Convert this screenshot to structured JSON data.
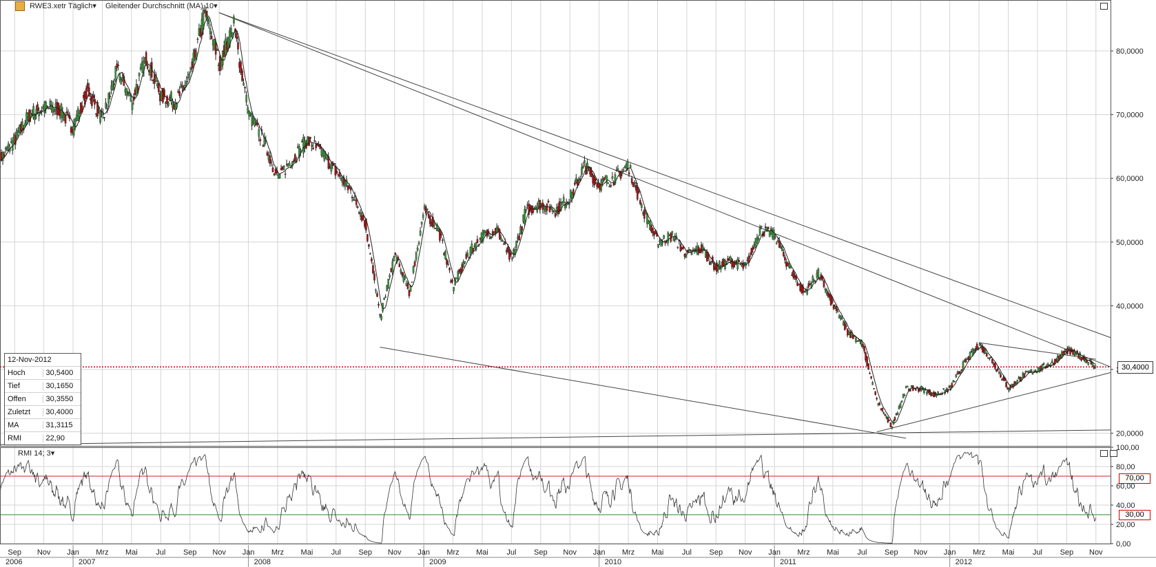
{
  "header": {
    "symbol_label": "RWE3.xetr Täglich",
    "indicator_label": "Gleitender Durchschnitt (MA) 10"
  },
  "rmi_header": {
    "label": "RMI 14; 3"
  },
  "info_box": {
    "date": "12-Nov-2012",
    "rows": [
      {
        "label": "Hoch",
        "value": "30,5400"
      },
      {
        "label": "Tief",
        "value": "30,1650"
      },
      {
        "label": "Offen",
        "value": "30,3550"
      },
      {
        "label": "Zuletzt",
        "value": "30,4000"
      },
      {
        "label": "MA",
        "value": "31,3115"
      },
      {
        "label": "RMI",
        "value": "22,90"
      }
    ]
  },
  "current_price_label": "30,4000",
  "rmi_levels": {
    "upper": "70,00",
    "lower": "30,00"
  },
  "colors": {
    "candle_up": "#3a9a3a",
    "candle_down": "#b01010",
    "ma_line": "#222222",
    "price_line": "#cc0000",
    "rmi_upper": "#cc2222",
    "rmi_lower": "#2a8a2a",
    "grid": "#d4d4d4",
    "trendline": "#444444"
  },
  "chart_data": [
    {
      "type": "candlestick",
      "series": [
        {
          "name": "RWE3.xetr Täglich"
        },
        {
          "name": "Gleitender Durchschnitt (MA) 10"
        }
      ],
      "ylim": [
        18,
        88
      ],
      "y_ticks": [
        "20,0000",
        "30,0000",
        "40,0000",
        "50,0000",
        "60,0000",
        "70,0000",
        "80,0000"
      ],
      "x_month_ticks": [
        "Sep",
        "Nov",
        "Jan",
        "Mrz",
        "Mai",
        "Jul",
        "Sep",
        "Nov",
        "Jan",
        "Mrz",
        "Mai",
        "Jul",
        "Sep",
        "Nov",
        "Jan",
        "Mrz",
        "Mai",
        "Jul",
        "Sep",
        "Nov",
        "Jan",
        "Mrz",
        "Mai",
        "Jul",
        "Sep",
        "Nov",
        "Jan",
        "Mrz",
        "Mai",
        "Jul",
        "Sep",
        "Nov",
        "Jan",
        "Mrz",
        "Mai",
        "Jul",
        "Sep",
        "Nov"
      ],
      "x_year_labels": [
        "2006",
        "2007",
        "2008",
        "2009",
        "2010",
        "2011",
        "2012"
      ],
      "x_range": [
        "2006-08",
        "2012-12"
      ],
      "approx_path": [
        {
          "x": "2006-08",
          "y": 63
        },
        {
          "x": "2006-09",
          "y": 66
        },
        {
          "x": "2006-10",
          "y": 70
        },
        {
          "x": "2006-11",
          "y": 71
        },
        {
          "x": "2006-12",
          "y": 71
        },
        {
          "x": "2007-01",
          "y": 68
        },
        {
          "x": "2007-02",
          "y": 74
        },
        {
          "x": "2007-03",
          "y": 69
        },
        {
          "x": "2007-04",
          "y": 77
        },
        {
          "x": "2007-05",
          "y": 72
        },
        {
          "x": "2007-06",
          "y": 79
        },
        {
          "x": "2007-07",
          "y": 73
        },
        {
          "x": "2007-08",
          "y": 72
        },
        {
          "x": "2007-09",
          "y": 76
        },
        {
          "x": "2007-10",
          "y": 86
        },
        {
          "x": "2007-11",
          "y": 78
        },
        {
          "x": "2007-12",
          "y": 84
        },
        {
          "x": "2008-01",
          "y": 70
        },
        {
          "x": "2008-02",
          "y": 66
        },
        {
          "x": "2008-03",
          "y": 60
        },
        {
          "x": "2008-04",
          "y": 63
        },
        {
          "x": "2008-05",
          "y": 66
        },
        {
          "x": "2008-06",
          "y": 64
        },
        {
          "x": "2008-07",
          "y": 61
        },
        {
          "x": "2008-08",
          "y": 58
        },
        {
          "x": "2008-09",
          "y": 53
        },
        {
          "x": "2008-10",
          "y": 38
        },
        {
          "x": "2008-11",
          "y": 48
        },
        {
          "x": "2008-12",
          "y": 42
        },
        {
          "x": "2009-01",
          "y": 55
        },
        {
          "x": "2009-02",
          "y": 52
        },
        {
          "x": "2009-03",
          "y": 43
        },
        {
          "x": "2009-04",
          "y": 48
        },
        {
          "x": "2009-05",
          "y": 51
        },
        {
          "x": "2009-06",
          "y": 52
        },
        {
          "x": "2009-07",
          "y": 47
        },
        {
          "x": "2009-08",
          "y": 55
        },
        {
          "x": "2009-09",
          "y": 56
        },
        {
          "x": "2009-10",
          "y": 55
        },
        {
          "x": "2009-11",
          "y": 57
        },
        {
          "x": "2009-12",
          "y": 62
        },
        {
          "x": "2010-01",
          "y": 59
        },
        {
          "x": "2010-02",
          "y": 60
        },
        {
          "x": "2010-03",
          "y": 62
        },
        {
          "x": "2010-04",
          "y": 55
        },
        {
          "x": "2010-05",
          "y": 50
        },
        {
          "x": "2010-06",
          "y": 51
        },
        {
          "x": "2010-07",
          "y": 48
        },
        {
          "x": "2010-08",
          "y": 49
        },
        {
          "x": "2010-09",
          "y": 46
        },
        {
          "x": "2010-10",
          "y": 47
        },
        {
          "x": "2010-11",
          "y": 46
        },
        {
          "x": "2010-12",
          "y": 52
        },
        {
          "x": "2011-01",
          "y": 51
        },
        {
          "x": "2011-02",
          "y": 46
        },
        {
          "x": "2011-03",
          "y": 42
        },
        {
          "x": "2011-04",
          "y": 45
        },
        {
          "x": "2011-05",
          "y": 40
        },
        {
          "x": "2011-06",
          "y": 36
        },
        {
          "x": "2011-07",
          "y": 34
        },
        {
          "x": "2011-08",
          "y": 25
        },
        {
          "x": "2011-09",
          "y": 21
        },
        {
          "x": "2011-10",
          "y": 27
        },
        {
          "x": "2011-11",
          "y": 27
        },
        {
          "x": "2011-12",
          "y": 26
        },
        {
          "x": "2012-01",
          "y": 27
        },
        {
          "x": "2012-02",
          "y": 31
        },
        {
          "x": "2012-03",
          "y": 34
        },
        {
          "x": "2012-04",
          "y": 31
        },
        {
          "x": "2012-05",
          "y": 27
        },
        {
          "x": "2012-06",
          "y": 29
        },
        {
          "x": "2012-07",
          "y": 30
        },
        {
          "x": "2012-08",
          "y": 31
        },
        {
          "x": "2012-09",
          "y": 33
        },
        {
          "x": "2012-10",
          "y": 32
        },
        {
          "x": "2012-11",
          "y": 30.4
        }
      ],
      "current_price": 30.4,
      "trendlines": [
        {
          "from": {
            "x": "2007-11",
            "y": 86
          },
          "to": {
            "x": "2012-12",
            "y": 35
          }
        },
        {
          "from": {
            "x": "2007-11",
            "y": 86
          },
          "to": {
            "x": "2012-12",
            "y": 30.4
          }
        },
        {
          "from": {
            "x": "2008-10",
            "y": 33.5
          },
          "to": {
            "x": "2011-10",
            "y": 19.2
          }
        },
        {
          "from": {
            "x": "2011-08",
            "y": 20.2
          },
          "to": {
            "x": "2012-12",
            "y": 29.5
          }
        },
        {
          "from": {
            "x": "2012-03",
            "y": 34.2
          },
          "to": {
            "x": "2012-11",
            "y": 31.6
          }
        },
        {
          "from": {
            "x": "2006-08",
            "y": 18.2
          },
          "to": {
            "x": "2012-12",
            "y": 20.5
          }
        }
      ]
    },
    {
      "type": "line",
      "series": [
        {
          "name": "RMI 14; 3"
        }
      ],
      "ylim": [
        0,
        100
      ],
      "y_ticks": [
        "0,00",
        "20,00",
        "40,00",
        "60,00",
        "80,00",
        "100,00"
      ],
      "levels": [
        70,
        30
      ]
    }
  ]
}
